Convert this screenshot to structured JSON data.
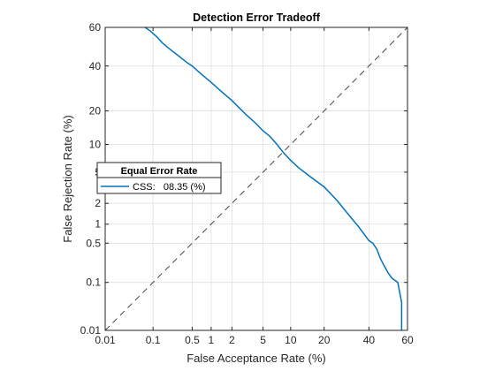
{
  "chart_data": {
    "type": "line",
    "title": "Detection Error Tradeoff",
    "xlabel": "False Acceptance Rate (%)",
    "ylabel": "False Rejection Rate (%)",
    "scale": "probit (normal deviate)",
    "xlim": [
      0.01,
      60
    ],
    "ylim": [
      0.01,
      60
    ],
    "x_ticks": [
      0.01,
      0.1,
      0.5,
      1,
      2,
      5,
      10,
      20,
      40,
      60
    ],
    "x_tick_labels": [
      "0.01",
      "0.1",
      "0.5",
      "1",
      "2",
      "5",
      "10",
      "20",
      "40",
      "60"
    ],
    "y_ticks": [
      0.01,
      0.1,
      0.5,
      1,
      2,
      5,
      10,
      20,
      40,
      60
    ],
    "y_tick_labels": [
      "0.01",
      "0.1",
      "0.5",
      "1",
      "2",
      "5",
      "10",
      "20",
      "40",
      "60"
    ],
    "grid": true,
    "legend": {
      "title": "Equal Error Rate",
      "placement": "left-middle",
      "entries": [
        "CSS:   08.35 (%)"
      ]
    },
    "series": [
      {
        "name": "CSS",
        "color": "#0072bd",
        "style": "solid",
        "x": [
          0.07,
          0.09,
          0.12,
          0.15,
          0.2,
          0.3,
          0.4,
          0.5,
          0.7,
          1.0,
          1.4,
          2,
          3,
          4,
          5,
          6,
          7,
          8.35,
          10,
          12,
          15,
          20,
          25,
          30,
          35,
          40,
          42,
          44,
          46,
          48,
          50,
          52,
          55,
          57,
          57
        ],
        "y": [
          60,
          58,
          55,
          52,
          49,
          45,
          42,
          40,
          36,
          32,
          28,
          24,
          19,
          16,
          13.5,
          12,
          10.3,
          8.35,
          6.8,
          5.6,
          4.5,
          3.3,
          2.2,
          1.4,
          0.9,
          0.55,
          0.5,
          0.4,
          0.27,
          0.2,
          0.15,
          0.12,
          0.1,
          0.04,
          0.01
        ]
      },
      {
        "name": "",
        "color": "#444444",
        "style": "dashed",
        "x": [
          0.01,
          60
        ],
        "y": [
          0.01,
          60
        ]
      }
    ]
  }
}
